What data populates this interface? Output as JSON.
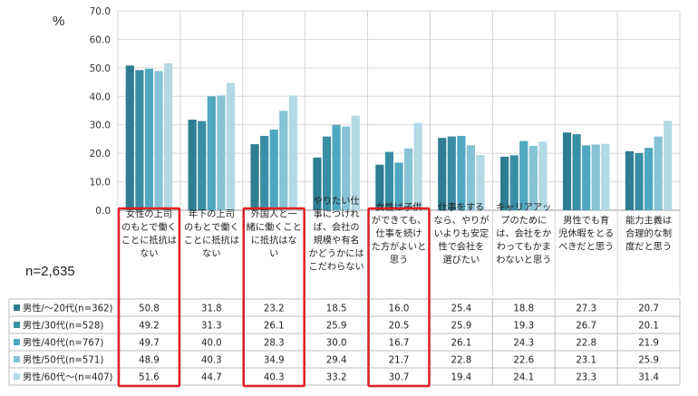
{
  "unit_label": "%",
  "sample_label": "n=2,635",
  "chart_data": {
    "type": "bar",
    "ylim": [
      0,
      70
    ],
    "yticks": [
      "0.0",
      "10.0",
      "20.0",
      "30.0",
      "40.0",
      "50.0",
      "60.0",
      "70.0"
    ],
    "grid": true,
    "categories": [
      "女性の上司のもとで働くことに抵抗はない",
      "年下の上司のもとで働くことに抵抗はない",
      "外国人と一緒に働くことに抵抗はない",
      "やりたい仕事につければ、会社の規模や有名かどうかにはこだわらない",
      "女性は子供ができても、仕事を続けた方がよいと思う",
      "仕事をするなら、やりがいよりも安定性で会社を選びたい",
      "キャリアアップのためには、会社をかわってもかまわないと思う",
      "男性でも育児休暇をとるべきだと思う",
      "能力主義は合理的な制度だと思う"
    ],
    "category_lines": [
      [
        "女性の上司",
        "のもとで働く",
        "ことに抵抗は",
        "ない"
      ],
      [
        "年下の上司",
        "のもとで働く",
        "ことに抵抗は",
        "ない"
      ],
      [
        "外国人と一",
        "緒に働くこと",
        "に抵抗はな",
        "い"
      ],
      [
        "やりたい仕",
        "事につけれ",
        "ば、会社の",
        "規模や有名",
        "かどうかには",
        "こだわらない"
      ],
      [
        "女性は子供",
        "ができても、",
        "仕事を続け",
        "た方がよいと",
        "思う"
      ],
      [
        "仕事をする",
        "なら、やりが",
        "いよりも安定",
        "性で会社を",
        "選びたい"
      ],
      [
        "キャリアアッ",
        "プのために",
        "は、会社をか",
        "わってもかま",
        "わないと思う"
      ],
      [
        "男性でも育",
        "児休暇をとる",
        "べきだと思う"
      ],
      [
        "能力主義は",
        "合理的な制",
        "度だと思う"
      ]
    ],
    "series": [
      {
        "name": "男性/～20代(n=362)",
        "color": "#2e7d92",
        "values": [
          50.8,
          31.8,
          23.2,
          18.5,
          16.0,
          25.4,
          18.8,
          27.3,
          20.7
        ]
      },
      {
        "name": "男性/30代(n=528)",
        "color": "#3a8ea3",
        "values": [
          49.2,
          31.3,
          26.1,
          25.9,
          20.5,
          25.9,
          19.3,
          26.7,
          20.1
        ]
      },
      {
        "name": "男性/40代(n=767)",
        "color": "#4fa8c0",
        "values": [
          49.7,
          40.0,
          28.3,
          30.0,
          16.7,
          26.1,
          24.3,
          22.8,
          21.9
        ]
      },
      {
        "name": "男性/50代(n=571)",
        "color": "#86c3d5",
        "values": [
          48.9,
          40.3,
          34.9,
          29.4,
          21.7,
          22.8,
          22.6,
          23.1,
          25.9
        ]
      },
      {
        "name": "男性/60代～(n=407)",
        "color": "#b3d9e5",
        "values": [
          51.6,
          44.7,
          40.3,
          33.2,
          30.7,
          19.4,
          24.1,
          23.3,
          31.4
        ]
      }
    ],
    "highlighted_categories": [
      0,
      2,
      4
    ],
    "highlight_color": "#e31e24",
    "legend_placement": "table-left"
  }
}
